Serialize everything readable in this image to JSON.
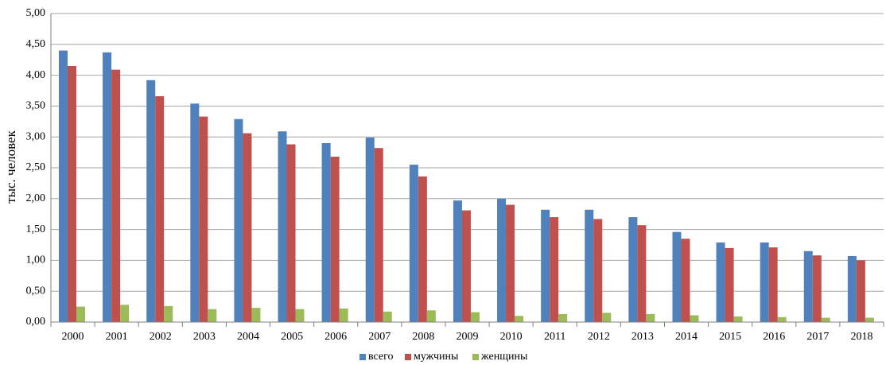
{
  "chart_data": {
    "type": "bar",
    "ylabel": "тыс. человек",
    "ylim": [
      0,
      5
    ],
    "y_ticks": [
      "0,00",
      "0,50",
      "1,00",
      "1,50",
      "2,00",
      "2,50",
      "3,00",
      "3,50",
      "4,00",
      "4,50",
      "5,00"
    ],
    "grid": true,
    "legend_position": "bottom",
    "categories": [
      "2000",
      "2001",
      "2002",
      "2003",
      "2004",
      "2005",
      "2006",
      "2007",
      "2008",
      "2009",
      "2010",
      "2011",
      "2012",
      "2013",
      "2014",
      "2015",
      "2016",
      "2017",
      "2018"
    ],
    "series": [
      {
        "name": "всего",
        "color": "#4f81bd",
        "values": [
          4.4,
          4.37,
          3.92,
          3.54,
          3.29,
          3.09,
          2.9,
          2.99,
          2.55,
          1.97,
          2.0,
          1.82,
          1.82,
          1.7,
          1.46,
          1.29,
          1.29,
          1.15,
          1.07
        ]
      },
      {
        "name": "мужчины",
        "color": "#c0504d",
        "values": [
          4.15,
          4.09,
          3.66,
          3.33,
          3.06,
          2.88,
          2.68,
          2.82,
          2.36,
          1.81,
          1.9,
          1.7,
          1.67,
          1.57,
          1.35,
          1.2,
          1.21,
          1.08,
          1.0
        ]
      },
      {
        "name": "женщины",
        "color": "#9bbb59",
        "values": [
          0.25,
          0.28,
          0.26,
          0.21,
          0.23,
          0.21,
          0.22,
          0.17,
          0.19,
          0.16,
          0.1,
          0.13,
          0.15,
          0.13,
          0.11,
          0.09,
          0.08,
          0.07,
          0.07
        ]
      }
    ]
  }
}
